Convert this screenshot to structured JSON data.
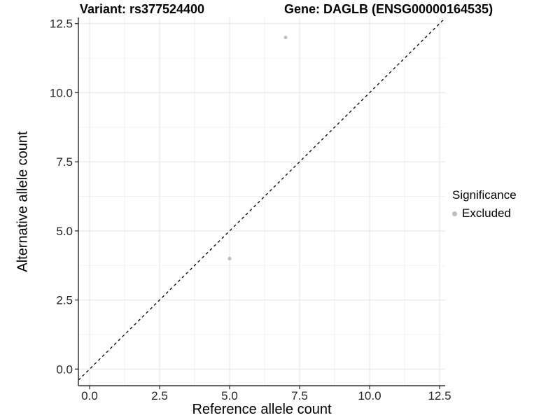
{
  "titles": {
    "variant": "Variant: rs377524400",
    "gene": "Gene: DAGLB (ENSG00000164535)"
  },
  "chart_data": {
    "type": "scatter",
    "xlabel": "Reference allele count",
    "ylabel": "Alternative allele count",
    "xlim": [
      -0.4,
      12.7
    ],
    "ylim": [
      -0.6,
      12.72
    ],
    "x_ticks": [
      0.0,
      2.5,
      5.0,
      7.5,
      10.0,
      12.5
    ],
    "y_ticks": [
      0.0,
      2.5,
      5.0,
      7.5,
      10.0,
      12.5
    ],
    "x_tick_labels": [
      "0.0",
      "2.5",
      "5.0",
      "7.5",
      "10.0",
      "12.5"
    ],
    "y_tick_labels": [
      "0.0",
      "2.5",
      "5.0",
      "7.5",
      "10.0",
      "12.5"
    ],
    "grid": true,
    "legend_position": "right",
    "series": [
      {
        "name": "Excluded",
        "marker": "circle",
        "color": "#bebebe",
        "points": [
          {
            "x": 5,
            "y": 4
          },
          {
            "x": 7,
            "y": 12
          }
        ]
      }
    ],
    "identity_line": {
      "slope": 1,
      "intercept": 0,
      "style": "dashed",
      "color": "#000000"
    }
  },
  "legend": {
    "title": "Significance",
    "entries": [
      {
        "label": "Excluded",
        "color": "#bebebe",
        "marker": "circle-icon"
      }
    ]
  },
  "colors": {
    "point_gray": "#bebebe",
    "axis_line": "#333333",
    "major_grid": "#e8e8e8",
    "minor_grid": "#f1f1f1",
    "tick_label": "#262626",
    "background": "#ffffff"
  }
}
